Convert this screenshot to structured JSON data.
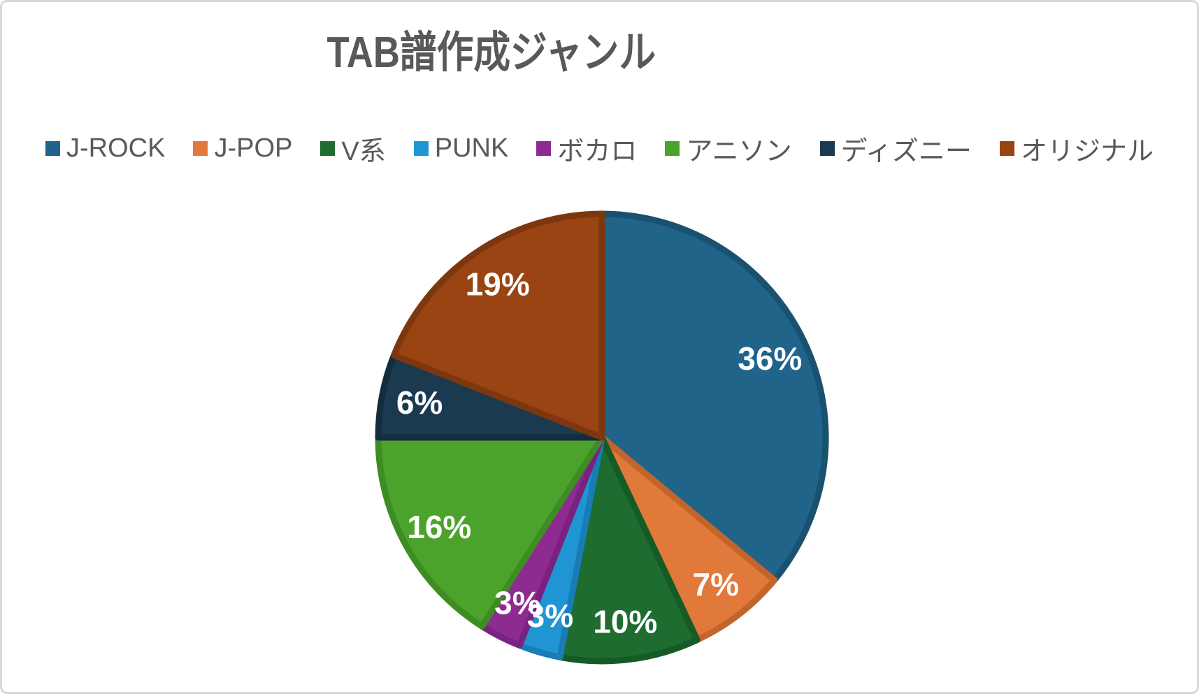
{
  "chart_data": {
    "type": "pie",
    "title": "TAB譜作成ジャンル",
    "legend_position": "top",
    "direction": "clockwise",
    "start_angle_deg": 0,
    "text_color": "#595959",
    "background": "#ffffff",
    "data_labels": {
      "format": "percent",
      "color": "#ffffff",
      "position_frac": 0.83
    },
    "slices": [
      {
        "label": "J-ROCK",
        "value": 36,
        "color": "#20648A",
        "edge": "#1A5170"
      },
      {
        "label": "J-POP",
        "value": 7,
        "color": "#E0793A",
        "edge": "#C2652C"
      },
      {
        "label": "V系",
        "value": 10,
        "color": "#1E6C2F",
        "edge": "#165A26"
      },
      {
        "label": "PUNK",
        "value": 3,
        "color": "#2095D3",
        "edge": "#187DB5"
      },
      {
        "label": "ボカロ",
        "value": 3,
        "color": "#8E2B90",
        "edge": "#7A2280"
      },
      {
        "label": "アニソン",
        "value": 16,
        "color": "#4CA32C",
        "edge": "#3E8C24"
      },
      {
        "label": "ディズニー",
        "value": 6,
        "color": "#1B3A50",
        "edge": "#132C3E"
      },
      {
        "label": "オリジナル",
        "value": 19,
        "color": "#9A4313",
        "edge": "#7D370E"
      }
    ]
  }
}
